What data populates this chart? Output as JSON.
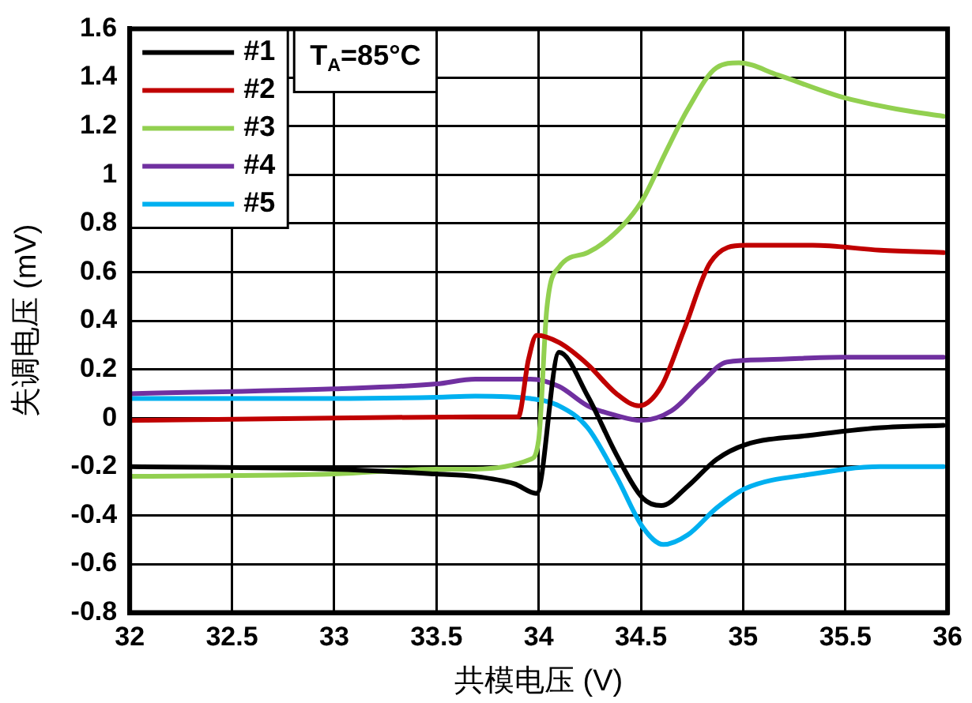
{
  "chart_data": {
    "type": "line",
    "xlabel": "共模电压 (V)",
    "ylabel": "失调电压 (mV)",
    "annotations": [
      "T$_{A}$=85°C"
    ],
    "xlim": [
      32,
      36
    ],
    "xticks": [
      32,
      32.5,
      33,
      33.5,
      34,
      34.5,
      35,
      35.5,
      36
    ],
    "ylim": [
      -0.8,
      1.6
    ],
    "yticks": [
      -0.8,
      -0.6,
      -0.4,
      -0.2,
      0,
      0.2,
      0.4,
      0.6,
      0.8,
      1,
      1.2,
      1.4,
      1.6
    ],
    "grid": true,
    "legend": "top left",
    "marker": "none",
    "line_style": "solid",
    "series": [
      {
        "name": "#1",
        "color": "#000000",
        "x": [
          32,
          33,
          33.5,
          33.69,
          33.88,
          33.99,
          34.1,
          34.24,
          34.38,
          34.51,
          34.6,
          34.73,
          34.87,
          35.01,
          35.34,
          35.67,
          35.98
        ],
        "values": [
          -0.2,
          -0.21,
          -0.23,
          -0.24,
          -0.27,
          -0.31,
          0.27,
          0.09,
          -0.15,
          -0.33,
          -0.36,
          -0.28,
          -0.17,
          -0.11,
          -0.07,
          -0.04,
          -0.03
        ]
      },
      {
        "name": "#2",
        "color": "#c00000",
        "x": [
          32,
          33,
          33.69,
          33.9,
          33.95,
          33.99,
          34.1,
          34.24,
          34.38,
          34.49,
          34.6,
          34.71,
          34.84,
          35.01,
          35.34,
          35.67,
          35.98
        ],
        "values": [
          -0.01,
          0,
          0.005,
          0.005,
          0.24,
          0.34,
          0.31,
          0.22,
          0.1,
          0.05,
          0.13,
          0.36,
          0.64,
          0.71,
          0.71,
          0.69,
          0.68
        ]
      },
      {
        "name": "#3",
        "color": "#92d050",
        "x": [
          32,
          33,
          33.5,
          33.69,
          33.96,
          34,
          34.04,
          34.1,
          34.24,
          34.41,
          34.51,
          34.62,
          34.73,
          34.87,
          34.98,
          35.17,
          35.48,
          35.75,
          35.98
        ],
        "values": [
          -0.24,
          -0.23,
          -0.21,
          -0.21,
          -0.17,
          -0.09,
          0.45,
          0.62,
          0.68,
          0.79,
          0.9,
          1.09,
          1.27,
          1.44,
          1.46,
          1.41,
          1.32,
          1.27,
          1.24
        ]
      },
      {
        "name": "#4",
        "color": "#7030a0",
        "x": [
          32,
          33,
          33.5,
          33.69,
          33.96,
          34.1,
          34.24,
          34.38,
          34.5,
          34.65,
          34.79,
          34.92,
          35.12,
          35.48,
          35.98
        ],
        "values": [
          0.1,
          0.12,
          0.14,
          0.16,
          0.16,
          0.13,
          0.05,
          0.01,
          -0.01,
          0.03,
          0.14,
          0.23,
          0.24,
          0.25,
          0.25
        ]
      },
      {
        "name": "#5",
        "color": "#00b0f0",
        "x": [
          32,
          33,
          33.5,
          33.69,
          33.96,
          34.1,
          34.24,
          34.38,
          34.51,
          34.61,
          34.73,
          34.87,
          35.01,
          35.34,
          35.67,
          35.98
        ],
        "values": [
          0.08,
          0.08,
          0.085,
          0.09,
          0.08,
          0.05,
          -0.04,
          -0.24,
          -0.45,
          -0.52,
          -0.48,
          -0.37,
          -0.29,
          -0.23,
          -0.2,
          -0.2
        ]
      }
    ]
  }
}
